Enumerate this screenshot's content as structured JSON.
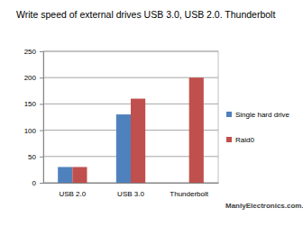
{
  "chart_data": {
    "type": "bar",
    "title": "Write speed of external drives USB 3.0, USB 2.0. Thunderbolt",
    "categories": [
      "USB 2.0",
      "USB 3.0",
      "Thunderbolt"
    ],
    "series": [
      {
        "name": "Single hard drive",
        "color": "#4f81bd",
        "values": [
          30,
          130,
          null
        ]
      },
      {
        "name": "Raid0",
        "color": "#c0504d",
        "values": [
          30,
          160,
          200
        ]
      }
    ],
    "ylim": [
      0,
      250
    ],
    "yticks": [
      0,
      50,
      100,
      150,
      200,
      250
    ],
    "grid": true,
    "legend": "right",
    "annotations": [
      "ManlyElectronics.com.au"
    ]
  }
}
